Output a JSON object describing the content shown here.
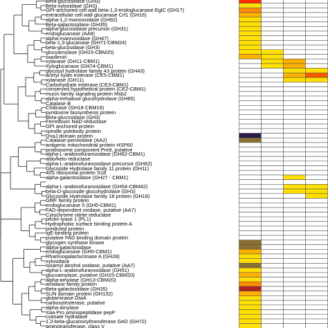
{
  "rows": [
    {
      "label": "Beta-glucosidase (GH3)",
      "cells": [
        "#ff2a00",
        "#ffffff",
        "#ffffff",
        "#ffffff"
      ]
    },
    {
      "label": "Beta-xylosidase (GH3)",
      "cells": [
        "#ffe000",
        "#ffffff",
        "#ffffff",
        "#ffffff"
      ]
    },
    {
      "label": "GPI-anchored cell wall beta-1,3-endoglucanase EglC (GH17)",
      "cells": [
        "#ff8c00",
        "#ffffff",
        "#ffffff",
        "#ffffff"
      ]
    },
    {
      "label": "extracellular cell wall glucanase Crf1 (GH16)",
      "cells": [
        "#ffb000",
        "#ffffff",
        "#ffffff",
        "#ffffff"
      ]
    },
    {
      "label": "alpha-1,2-mannosidase (GH92)",
      "cells": [
        "#ffe000",
        "#ffffff",
        "#ffffff",
        "#ffffff"
      ]
    },
    {
      "label": "Beta-galactosidase (GH35)",
      "cells": [
        "#ffe000",
        "#ffffff",
        "#ffffff",
        "#ffffff"
      ]
    },
    {
      "label": "alpha-glucosidase precursor (GH31)",
      "cells": [
        "#ffe000",
        "#ffffff",
        "#ffffff",
        "#ffffff"
      ]
    },
    {
      "label": "endoglucanase (AA9)",
      "cells": [
        "#ffe000",
        "#ffffff",
        "#ffffff",
        "#ffffff"
      ]
    },
    {
      "label": "alpha-mannosidase (GH47)",
      "cells": [
        "#ffe000",
        "#ffffff",
        "#ffffff",
        "#ffffff"
      ]
    },
    {
      "label": "beta-1,3-glucanase (GH71-CBM24)",
      "cells": [
        "#ffe000",
        "#ffffff",
        "#ffffff",
        "#ffffff"
      ]
    },
    {
      "label": "beta-glucosidase (GH3)",
      "cells": [
        "#ffe000",
        "#ffffff",
        "#ffffff",
        "#ffffff"
      ]
    },
    {
      "label": "glucoamylase (GH15-CBM20)",
      "cells": [
        "#ffe000",
        "#ffe000",
        "#ffffff",
        "#ffffff"
      ]
    },
    {
      "label": "swollenin",
      "cells": [
        "#ffb000",
        "#ffe000",
        "#ffffff",
        "#ffffff"
      ]
    },
    {
      "label": "xylanase (GH11-CBM1)",
      "cells": [
        "#ffffff",
        "#ffe000",
        "#ffb000",
        "#ffffff"
      ]
    },
    {
      "label": "Xyloglucanase (GH74-CBM1)",
      "cells": [
        "#ffffff",
        "#ffe000",
        "#ffb000",
        "#ffffff"
      ]
    },
    {
      "label": "glycosyl hydrolase family 43 protein (GH43)",
      "cells": [
        "#ffffff",
        "#ffffff",
        "#ffe000",
        "#ffe000"
      ]
    },
    {
      "label": "acetyl xylan esterase (CE5-CBM1)",
      "cells": [
        "#ffffff",
        "#ffffff",
        "#ffb000",
        "#ff5a00"
      ]
    },
    {
      "label": "xylanase (GH11)",
      "cells": [
        "#ffffff",
        "#ffffff",
        "#ffe000",
        "#ffe000"
      ]
    },
    {
      "label": "Carbohydrate esterase (CE3-CBM1)",
      "cells": [
        "#ffffff",
        "#ffffff",
        "#ffffff",
        "#ffffff"
      ]
    },
    {
      "label": "conserved hypothetical protein (CE2-CBM1)",
      "cells": [
        "#ffffff",
        "#ffffff",
        "#ffffff",
        "#ffffff"
      ]
    },
    {
      "label": "mucin family signaling protein Msb2",
      "cells": [
        "#ffffff",
        "#ffffff",
        "#ffffff",
        "#ffffff"
      ]
    },
    {
      "label": "alpha-trehalose glucohydrolase (GH65)",
      "cells": [
        "#ffffff",
        "#ffffff",
        "#ffffff",
        "#ffffff"
      ]
    },
    {
      "label": "Catalase B",
      "cells": [
        "#ffffff",
        "#ffffff",
        "#ffffff",
        "#ffffff"
      ]
    },
    {
      "label": "Chitinase (GH18-CBM18)",
      "cells": [
        "#ffffff",
        "#ffffff",
        "#ffffff",
        "#ffffff"
      ]
    },
    {
      "label": "pyridoxine biosynthesis protein",
      "cells": [
        "#ffffff",
        "#ffffff",
        "#ffffff",
        "#ffffff"
      ]
    },
    {
      "label": "Beta-glucosidase (GH3)",
      "cells": [
        "#ffffff",
        "#ffffff",
        "#ffffff",
        "#ffffff"
      ]
    },
    {
      "label": "Ferredoxin NAD-reductase",
      "cells": [
        "#ffffff",
        "#ffffff",
        "#ffffff",
        "#ffffff"
      ]
    },
    {
      "label": "GPI anchored protein",
      "cells": [
        "#ffffff",
        "#ffffff",
        "#ffffff",
        "#ffffff"
      ]
    },
    {
      "label": "spindle polebody protein",
      "cells": [
        "#ffffff",
        "#ffffff",
        "#ffffff",
        "#ffffff"
      ]
    },
    {
      "label": "DnaJ domain protein",
      "cells": [
        "#2e1a4a",
        "#ffffff",
        "#ffffff",
        "#ffffff"
      ]
    },
    {
      "label": "Catalase-peroxidase (AA2)",
      "cells": [
        "#8a7030",
        "#ffffff",
        "#ffffff",
        "#ffffff"
      ]
    },
    {
      "label": "antigenic mitochondrial protein HSP60",
      "cells": [
        "#ffffff",
        "#ffffff",
        "#ffffff",
        "#ffffff"
      ]
    },
    {
      "label": "proteasome component Pre9, putative",
      "cells": [
        "#ffffff",
        "#ffffff",
        "#ffffff",
        "#ffffff"
      ]
    },
    {
      "label": "alpha-L-arabinofuranosidase (GH62-CBM1)",
      "cells": [
        "#ffffff",
        "#ffffff",
        "#ffffff",
        "#ffffff"
      ]
    },
    {
      "label": "aldo/keto reductase",
      "cells": [
        "#ffffff",
        "#ffffff",
        "#ffffff",
        "#ffffff"
      ]
    },
    {
      "label": "alpha-L-arabinofuranosidase precursor (GH62)",
      "cells": [
        "#ffffff",
        "#ffffff",
        "#ffffff",
        "#ffffff"
      ]
    },
    {
      "label": "Glycoside Hydrolase family 11 protein (GH11)",
      "cells": [
        "#ffffff",
        "#ffffff",
        "#ffffff",
        "#ffffff"
      ]
    },
    {
      "label": "40S ribosomal protein S18",
      "cells": [
        "#ffffff",
        "#ffffff",
        "#ffffff",
        "#ffffff"
      ]
    },
    {
      "label": "alpha-galactosidase (GH27 - CBM1)",
      "cells": [
        "#ffffff",
        "#ffffff",
        "#ffe000",
        "#ffffff"
      ]
    },
    {
      "label": "",
      "cells": [
        "#ffffff",
        "#ffffff",
        "#ffffff",
        "#ffffff"
      ]
    },
    {
      "label": "alpha-L-arabinofuranosidase (GH54-CBM42)",
      "cells": [
        "#ffffff",
        "#ffffff",
        "#ffe000",
        "#ffe000"
      ]
    },
    {
      "label": "beta-D-glucoside glucohydrolase (GH3)",
      "cells": [
        "#ffffff",
        "#ffffff",
        "#ffe000",
        "#ffe000"
      ]
    },
    {
      "label": "Glycoside Hydrolase family 18 protein (GH18)",
      "cells": [
        "#ffffff",
        "#ffffff",
        "#ffffff",
        "#ffe000"
      ]
    },
    {
      "label": "GMF family protein",
      "cells": [
        "#ffffff",
        "#ffffff",
        "#ffffff",
        "#ffffff"
      ]
    },
    {
      "label": "endoglucanase 5 (GH5-CBM1)",
      "cells": [
        "#ffffff",
        "#ffffff",
        "#ffffff",
        "#ffffff"
      ]
    },
    {
      "label": "FAD-dependent oxidase, putative (AA7)",
      "cells": [
        "#ffffff",
        "#ffffff",
        "#ffffff",
        "#ffffff"
      ]
    },
    {
      "label": "Cytochrome nitrite reductase",
      "cells": [
        "#ffffff",
        "#ffffff",
        "#ffffff",
        "#ffffff"
      ]
    },
    {
      "label": "pectin lyase 1 (PL1)",
      "cells": [
        "#ffffff",
        "#ffffff",
        "#ffffff",
        "#ffffff"
      ]
    },
    {
      "label": "Hydrophobic surface binding protein A",
      "cells": [
        "#ffffff",
        "#ffffff",
        "#ffffff",
        "#ffffff"
      ]
    },
    {
      "label": "predicted protein",
      "cells": [
        "#ffffff",
        "#ffffff",
        "#ffffff",
        "#ffffff"
      ]
    },
    {
      "label": "IgE-binding protein",
      "cells": [
        "#ffffff",
        "#ffffff",
        "#ffffff",
        "#ffffff"
      ]
    },
    {
      "label": "putative FAD binding domain protein",
      "cells": [
        "#ffffff",
        "#ffffff",
        "#ffffff",
        "#ffffff"
      ]
    },
    {
      "label": "glycogen synthase kinase",
      "cells": [
        "#8a7030",
        "#ffffff",
        "#ffffff",
        "#ffffff"
      ]
    },
    {
      "label": "alpha-galactosidase",
      "cells": [
        "#8a7030",
        "#ffffff",
        "#ffffff",
        "#ffffff"
      ]
    },
    {
      "label": "endoglucanase (GH5-CBM1)",
      "cells": [
        "#ffb000",
        "#ffffff",
        "#ffffff",
        "#ffffff"
      ]
    },
    {
      "label": "Rhamnogalacturonase A (GH28)",
      "cells": [
        "#ffe000",
        "#ffffff",
        "#ffffff",
        "#ffffff"
      ]
    },
    {
      "label": "xylosidase",
      "cells": [
        "#ffe000",
        "#ffffff",
        "#ffffff",
        "#ffffff"
      ]
    },
    {
      "label": "isoamyl alcohol oxidase, putative (AA7)",
      "cells": [
        "#8a7030",
        "#ffffff",
        "#ffffff",
        "#ffffff"
      ]
    },
    {
      "label": "alpha-L-arabinofuranosidase (GH51)",
      "cells": [
        "#ffe000",
        "#ffffff",
        "#ffffff",
        "#ffffff"
      ]
    },
    {
      "label": "glucoamylase, putative (GH15-CBM20)",
      "cells": [
        "#ffb000",
        "#ffffff",
        "#ffffff",
        "#ffffff"
      ]
    },
    {
      "label": "alpha-amylase (GH13-CBM20)",
      "cells": [
        "#ffe000",
        "#ffffff",
        "#ffffff",
        "#ffffff"
      ]
    },
    {
      "label": "amidase family protein",
      "cells": [
        "#ff8c00",
        "#ffffff",
        "#ffffff",
        "#ffffff"
      ]
    },
    {
      "label": "Beta-galactosidase (GH35)",
      "cells": [
        "#b02020",
        "#ffffff",
        "#ffffff",
        "#ffffff"
      ]
    },
    {
      "label": "SUN domain protein (GH132)",
      "cells": [
        "#ffb000",
        "#ffffff",
        "#ffffff",
        "#ffffff"
      ]
    },
    {
      "label": "glutaminase GtaA",
      "cells": [
        "#ffe000",
        "#ffffff",
        "#ffffff",
        "#ffffff"
      ]
    },
    {
      "label": "carboxylesterase, putative",
      "cells": [
        "#ffe000",
        "#ffffff",
        "#ffffff",
        "#ffffff"
      ]
    },
    {
      "label": "alpha-amylase",
      "cells": [
        "#ffe000",
        "#ffffff",
        "#ffffff",
        "#ffffff"
      ]
    },
    {
      "label": "Xaa-Pro aminopeptidase pepP",
      "cells": [
        "#ffe000",
        "#ffffff",
        "#ffffff",
        "#ffffff"
      ]
    },
    {
      "label": "cyanate hydratase",
      "cells": [
        "#ffe000",
        "#ffffff",
        "#ffffff",
        "#ffffff"
      ]
    },
    {
      "label": "1,3-beta-glucanosyltransferase Gel2 (GH72)",
      "cells": [
        "#ffe000",
        "#ffffff",
        "#ffffff",
        "#ffffff"
      ]
    },
    {
      "label": "aminotransferase, class V",
      "cells": [
        "#ffe000",
        "#ffffff",
        "#ffffff",
        "#ffffff"
      ]
    }
  ]
}
